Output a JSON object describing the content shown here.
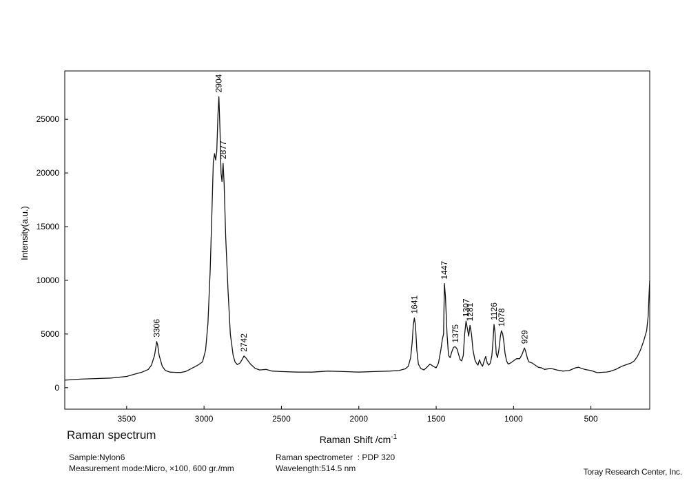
{
  "figure": {
    "title": "Raman spectrum",
    "sample": "Sample:Nylon6",
    "mode": "Measurement mode:Micro, ×100, 600 gr./mm",
    "spectrometer": "Raman spectrometer  : PDP 320",
    "wavelength": "Wavelength:514.5 nm",
    "credit": "Toray Research Center, Inc."
  },
  "chart_data": {
    "type": "line",
    "xlabel": "Raman Shift  /cm",
    "xlabel_sup": "-1",
    "ylabel": "Intensity(a.u.)",
    "xlim": [
      3900,
      120
    ],
    "ylim": [
      -2000,
      29500
    ],
    "x_reversed": true,
    "grid": false,
    "xticks": [
      3500,
      3000,
      2500,
      2000,
      1500,
      1000,
      500
    ],
    "yticks": [
      0,
      5000,
      10000,
      15000,
      20000,
      25000
    ],
    "series": [
      {
        "x": [
          3900,
          3800,
          3700,
          3600,
          3500,
          3450,
          3400,
          3360,
          3340,
          3320,
          3310,
          3306,
          3300,
          3290,
          3270,
          3250,
          3220,
          3180,
          3150,
          3120,
          3080,
          3040,
          3010,
          2990,
          2975,
          2960,
          2950,
          2940,
          2932,
          2925,
          2918,
          2910,
          2904,
          2897,
          2890,
          2884,
          2877,
          2870,
          2860,
          2845,
          2830,
          2812,
          2800,
          2785,
          2768,
          2755,
          2742,
          2728,
          2700,
          2670,
          2640,
          2600,
          2560,
          2500,
          2400,
          2300,
          2200,
          2100,
          2000,
          1900,
          1800,
          1740,
          1700,
          1680,
          1665,
          1655,
          1648,
          1641,
          1634,
          1625,
          1615,
          1600,
          1580,
          1560,
          1540,
          1520,
          1500,
          1485,
          1470,
          1460,
          1452,
          1447,
          1440,
          1430,
          1420,
          1410,
          1400,
          1390,
          1383,
          1375,
          1365,
          1355,
          1345,
          1335,
          1325,
          1316,
          1307,
          1298,
          1290,
          1281,
          1272,
          1262,
          1250,
          1240,
          1230,
          1220,
          1210,
          1200,
          1190,
          1180,
          1170,
          1160,
          1150,
          1140,
          1132,
          1126,
          1120,
          1112,
          1104,
          1095,
          1085,
          1078,
          1070,
          1062,
          1055,
          1045,
          1035,
          1020,
          1000,
          980,
          960,
          945,
          935,
          929,
          920,
          910,
          900,
          880,
          860,
          840,
          820,
          800,
          760,
          720,
          680,
          640,
          600,
          580,
          560,
          540,
          520,
          500,
          480,
          460,
          440,
          420,
          400,
          380,
          360,
          340,
          320,
          300,
          280,
          260,
          240,
          220,
          200,
          180,
          160,
          140,
          130,
          125,
          120
        ],
        "y": [
          700,
          800,
          850,
          900,
          1050,
          1250,
          1450,
          1700,
          2100,
          3000,
          3900,
          4300,
          4000,
          3000,
          2000,
          1600,
          1450,
          1420,
          1420,
          1500,
          1800,
          2100,
          2400,
          3500,
          6000,
          11000,
          16000,
          21000,
          21800,
          21200,
          22000,
          25500,
          27100,
          24000,
          20000,
          19200,
          20900,
          19000,
          14000,
          9000,
          5000,
          3000,
          2400,
          2150,
          2300,
          2600,
          2950,
          2750,
          2200,
          1800,
          1650,
          1700,
          1550,
          1500,
          1450,
          1450,
          1550,
          1500,
          1450,
          1500,
          1550,
          1600,
          1750,
          2000,
          2800,
          4200,
          5800,
          6500,
          5800,
          3500,
          2200,
          1800,
          1650,
          1900,
          2200,
          2000,
          1850,
          2300,
          3500,
          4500,
          5000,
          9700,
          8500,
          5000,
          3000,
          2800,
          3300,
          3700,
          3800,
          3800,
          3600,
          3100,
          2600,
          2500,
          3000,
          5000,
          6200,
          5500,
          4800,
          5800,
          5000,
          3500,
          2600,
          2300,
          2100,
          2600,
          2200,
          2000,
          2500,
          2900,
          2300,
          2100,
          2300,
          3000,
          4500,
          5900,
          5200,
          3200,
          2800,
          3500,
          4800,
          5300,
          5000,
          4200,
          3200,
          2500,
          2200,
          2300,
          2500,
          2700,
          2700,
          3100,
          3500,
          3700,
          3300,
          2700,
          2400,
          2300,
          2100,
          1900,
          1850,
          1700,
          1800,
          1650,
          1550,
          1600,
          1850,
          1900,
          1800,
          1700,
          1650,
          1600,
          1500,
          1400,
          1420,
          1440,
          1460,
          1500,
          1600,
          1700,
          1850,
          2000,
          2100,
          2200,
          2300,
          2500,
          2900,
          3500,
          4300,
          5300,
          6700,
          8500,
          10000
        ]
      }
    ],
    "peak_labels": [
      {
        "x": 3306,
        "y": 4300,
        "text": "3306"
      },
      {
        "x": 2904,
        "y": 27100,
        "text": "2904"
      },
      {
        "x": 2877,
        "y": 20900,
        "text": "2877"
      },
      {
        "x": 2742,
        "y": 2950,
        "text": "2742"
      },
      {
        "x": 1641,
        "y": 6500,
        "text": "1641"
      },
      {
        "x": 1447,
        "y": 9700,
        "text": "1447"
      },
      {
        "x": 1375,
        "y": 3800,
        "text": "1375"
      },
      {
        "x": 1307,
        "y": 6200,
        "text": "1307"
      },
      {
        "x": 1281,
        "y": 5800,
        "text": "1281"
      },
      {
        "x": 1126,
        "y": 5900,
        "text": "1126"
      },
      {
        "x": 1078,
        "y": 5300,
        "text": "1078"
      },
      {
        "x": 929,
        "y": 3700,
        "text": "929"
      }
    ]
  }
}
